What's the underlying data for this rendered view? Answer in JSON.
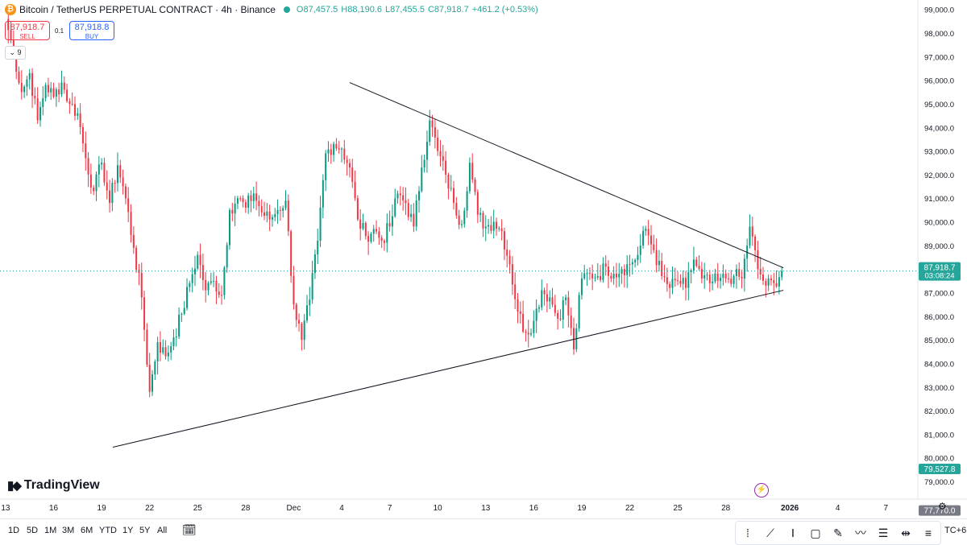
{
  "header": {
    "symbol": "Bitcoin / TetherUS PERPETUAL CONTRACT · 4h · Binance",
    "coin_glyph": "₿",
    "open": "O87,457.5",
    "high": "H88,190.6",
    "low": "L87,455.5",
    "close": "C87,918.7",
    "change": "+461.2 (+0.53%)",
    "status_color": "#26a69a"
  },
  "trade": {
    "sell_price": "87,918.7",
    "sell_label": "SELL",
    "spread": "0.1",
    "buy_price": "87,918.8",
    "buy_label": "BUY",
    "indicators_count": "9"
  },
  "logo_text": "TradingView",
  "bottom": {
    "ranges": [
      "1D",
      "5D",
      "1M",
      "3M",
      "6M",
      "YTD",
      "1Y",
      "5Y",
      "All"
    ],
    "timezone": "TC+6"
  },
  "chart_data": {
    "type": "candlestick",
    "price_axis_ticks": [
      "99,000.0",
      "98,000.0",
      "97,000.0",
      "96,000.0",
      "95,000.0",
      "94,000.0",
      "93,000.0",
      "92,000.0",
      "91,000.0",
      "90,000.0",
      "89,000.0",
      "88,000.0",
      "87,000.0",
      "86,000.0",
      "85,000.0",
      "84,000.0",
      "83,000.0",
      "82,000.0",
      "81,000.0",
      "80,000.0",
      "79,000.0"
    ],
    "ylim": [
      78250,
      99400
    ],
    "time_axis_ticks": [
      {
        "label": "13",
        "day": 13
      },
      {
        "label": "16",
        "day": 16
      },
      {
        "label": "19",
        "day": 19
      },
      {
        "label": "22",
        "day": 22
      },
      {
        "label": "25",
        "day": 25
      },
      {
        "label": "28",
        "day": 28
      },
      {
        "label": "Dec",
        "day": 31
      },
      {
        "label": "4",
        "day": 34
      },
      {
        "label": "7",
        "day": 37
      },
      {
        "label": "10",
        "day": 40
      },
      {
        "label": "13",
        "day": 43
      },
      {
        "label": "16",
        "day": 46
      },
      {
        "label": "19",
        "day": 49
      },
      {
        "label": "22",
        "day": 52
      },
      {
        "label": "25",
        "day": 55
      },
      {
        "label": "28",
        "day": 58
      },
      {
        "label": "2026",
        "day": 62
      },
      {
        "label": "4",
        "day": 65
      },
      {
        "label": "7",
        "day": 68
      }
    ],
    "x_range_days": [
      12.65,
      70
    ],
    "current_price": {
      "value": 87918.7,
      "label": "87,918.7",
      "countdown": "03:08:24",
      "color": "#26a69a"
    },
    "price_markers": [
      {
        "value": 79527.8,
        "label": "79,527.8",
        "color": "#26a69a"
      },
      {
        "value": 77770.0,
        "label": "77,770.0",
        "color": "#787b86"
      }
    ],
    "trendlines": [
      {
        "name": "upper",
        "x1": 34.5,
        "y1": 95900,
        "x2": 61.6,
        "y2": 88050
      },
      {
        "name": "lower",
        "x1": 19.7,
        "y1": 80450,
        "x2": 61.6,
        "y2": 87100
      }
    ],
    "up_color": "#089981",
    "down_color": "#f23645",
    "keypoints": [
      [
        13.0,
        98600
      ],
      [
        13.5,
        97200
      ],
      [
        14.0,
        95500
      ],
      [
        14.5,
        96300
      ],
      [
        15.0,
        94300
      ],
      [
        15.5,
        95800
      ],
      [
        16.0,
        95300
      ],
      [
        16.5,
        95900
      ],
      [
        17.0,
        95000
      ],
      [
        17.5,
        94600
      ],
      [
        18.0,
        92700
      ],
      [
        18.5,
        91300
      ],
      [
        19.0,
        92500
      ],
      [
        19.5,
        90800
      ],
      [
        20.0,
        92400
      ],
      [
        20.5,
        91000
      ],
      [
        21.0,
        88900
      ],
      [
        21.5,
        86800
      ],
      [
        22.0,
        82800
      ],
      [
        22.5,
        84900
      ],
      [
        23.0,
        84300
      ],
      [
        23.5,
        85100
      ],
      [
        24.0,
        86100
      ],
      [
        24.5,
        87400
      ],
      [
        25.0,
        88600
      ],
      [
        25.5,
        87100
      ],
      [
        26.0,
        87500
      ],
      [
        26.5,
        86900
      ],
      [
        27.0,
        90500
      ],
      [
        27.5,
        91000
      ],
      [
        28.0,
        90600
      ],
      [
        28.5,
        91200
      ],
      [
        29.0,
        90400
      ],
      [
        29.5,
        90100
      ],
      [
        30.0,
        90500
      ],
      [
        30.5,
        90900
      ],
      [
        31.0,
        86500
      ],
      [
        31.5,
        85000
      ],
      [
        32.0,
        86700
      ],
      [
        32.5,
        89200
      ],
      [
        33.0,
        92900
      ],
      [
        33.5,
        93300
      ],
      [
        34.0,
        93100
      ],
      [
        34.5,
        92300
      ],
      [
        35.0,
        90100
      ],
      [
        35.5,
        89400
      ],
      [
        36.0,
        89700
      ],
      [
        36.5,
        89200
      ],
      [
        37.0,
        89800
      ],
      [
        37.5,
        91200
      ],
      [
        38.0,
        90800
      ],
      [
        38.5,
        89800
      ],
      [
        39.0,
        92300
      ],
      [
        39.5,
        94300
      ],
      [
        40.0,
        93000
      ],
      [
        40.5,
        92000
      ],
      [
        41.0,
        90800
      ],
      [
        41.5,
        89900
      ],
      [
        42.0,
        92500
      ],
      [
        42.5,
        90300
      ],
      [
        43.0,
        89800
      ],
      [
        43.5,
        90000
      ],
      [
        44.0,
        89600
      ],
      [
        44.5,
        88200
      ],
      [
        45.0,
        86200
      ],
      [
        45.5,
        85300
      ],
      [
        46.0,
        85800
      ],
      [
        46.5,
        87100
      ],
      [
        47.0,
        86800
      ],
      [
        47.5,
        85900
      ],
      [
        48.0,
        86800
      ],
      [
        48.5,
        84600
      ],
      [
        49.0,
        87600
      ],
      [
        49.5,
        87800
      ],
      [
        50.0,
        87700
      ],
      [
        50.5,
        88100
      ],
      [
        51.0,
        87800
      ],
      [
        51.5,
        88000
      ],
      [
        52.0,
        88200
      ],
      [
        52.5,
        88600
      ],
      [
        53.0,
        89700
      ],
      [
        53.5,
        88800
      ],
      [
        54.0,
        87700
      ],
      [
        54.5,
        87200
      ],
      [
        55.0,
        87500
      ],
      [
        55.5,
        87200
      ],
      [
        56.0,
        88400
      ],
      [
        56.5,
        87600
      ],
      [
        57.0,
        87400
      ],
      [
        57.5,
        87500
      ],
      [
        58.0,
        87600
      ],
      [
        58.5,
        87700
      ],
      [
        59.0,
        87600
      ],
      [
        59.5,
        89800
      ],
      [
        60.0,
        88000
      ],
      [
        60.5,
        87300
      ],
      [
        61.0,
        87400
      ],
      [
        61.5,
        87918.7
      ]
    ]
  }
}
